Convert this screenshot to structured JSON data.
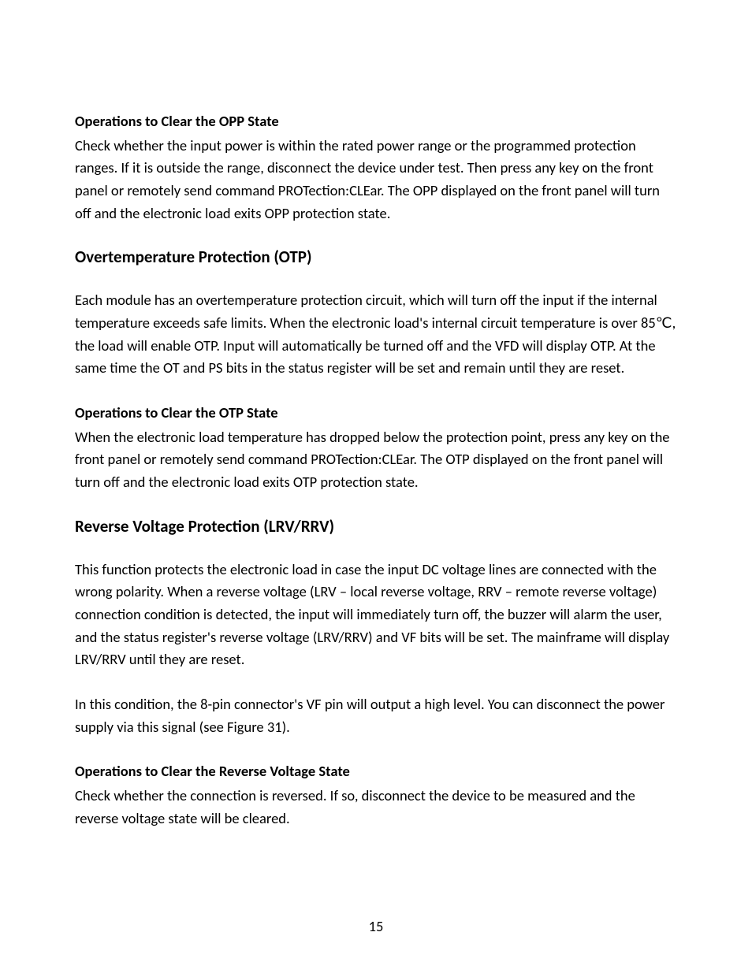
{
  "page_number": "15",
  "text_color": "#000000",
  "background_color": "#ffffff",
  "font_family": "Calibri, 'Segoe UI', Arial, sans-serif",
  "sections": {
    "opp_clear": {
      "heading": "Operations to Clear the OPP State",
      "body": "Check whether the input power is within the rated power range or the programmed protection ranges. If it is outside the range, disconnect the device under test. Then press any key on the front panel or remotely send command PROTection:CLEar. The OPP displayed on the front panel will turn off and the electronic load exits OPP protection state."
    },
    "otp": {
      "heading": "Overtemperature Protection (OTP)",
      "body": "Each module has an overtemperature protection circuit, which will turn off the input if the internal temperature exceeds safe limits. When the electronic load's internal circuit temperature is over 85℃, the load will enable OTP. Input will automatically be turned off and the VFD will display OTP. At the same time the OT and PS bits in the status register will be set and remain until they are reset."
    },
    "otp_clear": {
      "heading": "Operations to Clear the OTP State",
      "body": "When the electronic load temperature has dropped below the protection point, press any key on the front panel or remotely send command PROTection:CLEar. The OTP displayed on the front panel will turn off and the electronic load exits OTP protection state."
    },
    "rrv": {
      "heading": "Reverse Voltage Protection (LRV/RRV)",
      "body1": "This function protects the electronic load in case the input DC voltage lines are connected with the wrong polarity. When a reverse voltage (LRV – local reverse voltage, RRV – remote reverse voltage) connection condition is detected, the input will immediately turn off, the buzzer will alarm the user, and the status register's reverse voltage (LRV/RRV) and VF bits will be set. The mainframe will display LRV/RRV until they are reset.",
      "body2": "In this condition, the 8-pin connector's VF pin will output a high level. You can disconnect the power supply via this signal (see Figure 31)."
    },
    "rrv_clear": {
      "heading": "Operations to Clear the Reverse Voltage State",
      "body": "Check whether the connection is reversed. If so, disconnect the device to be measured and the reverse voltage state will be cleared."
    }
  }
}
